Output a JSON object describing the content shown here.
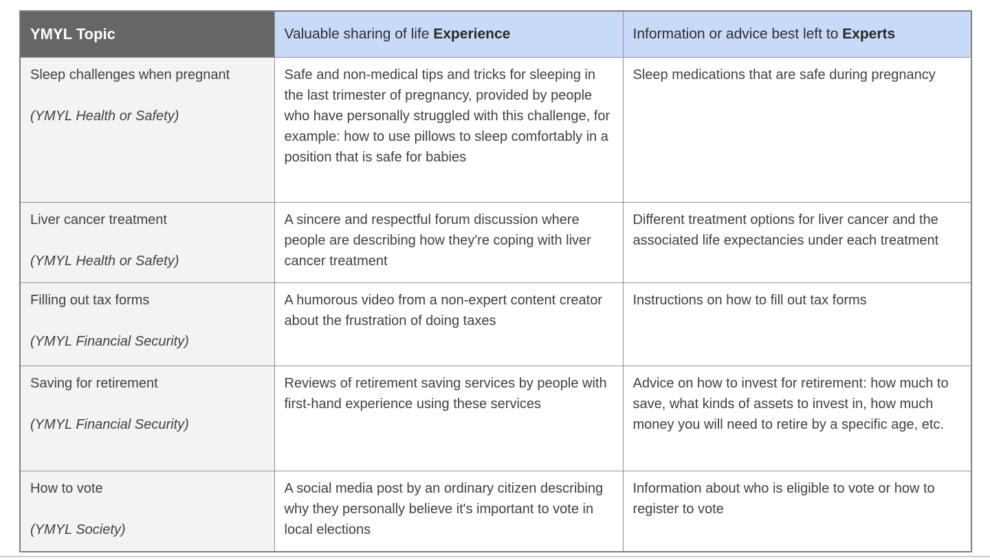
{
  "table": {
    "header": {
      "topic": "YMYL Topic",
      "experience_prefix": "Valuable sharing of life ",
      "experience_bold": "Experience",
      "experts_prefix": "Information or advice best left to ",
      "experts_bold": "Experts"
    },
    "rows": [
      {
        "topic": "Sleep challenges when pregnant",
        "category": "(YMYL Health or Safety)",
        "experience": "Safe and non-medical tips and tricks for sleeping in the last trimester of pregnancy, provided by people who have personally struggled with this challenge, for example: how to use pillows to sleep comfortably in a position that is safe for babies",
        "experts": "Sleep medications that are safe during pregnancy"
      },
      {
        "topic": "Liver cancer treatment",
        "category": "(YMYL Health or Safety)",
        "experience": "A sincere and respectful forum discussion where people are describing how they're coping with liver cancer treatment",
        "experts": "Different treatment options for liver cancer and the associated life expectancies under each treatment"
      },
      {
        "topic": "Filling out tax forms",
        "category": "(YMYL Financial Security)",
        "experience": "A humorous video from a non-expert content creator about the frustration of doing taxes",
        "experts": "Instructions on how to fill out tax forms"
      },
      {
        "topic": "Saving for retirement",
        "category": "(YMYL Financial Security)",
        "experience": "Reviews of retirement saving services by people with first-hand experience using these services",
        "experts": "Advice on how to invest for retirement: how much to save, what kinds of assets to invest in, how much money you will need to retire by a specific age, etc."
      },
      {
        "topic": "How to vote",
        "category": "(YMYL Society)",
        "experience": "A social media post by an ordinary citizen describing why they personally believe it's important to vote in local elections",
        "experts": "Information about who is eligible to vote or how to register to vote"
      }
    ]
  },
  "colors": {
    "header_dark_bg": "#666666",
    "header_blue_bg": "#c9daf8",
    "topic_column_bg": "#f3f3f3",
    "cell_bg": "#ffffff",
    "border": "#8f8f8f",
    "text": "#404040"
  }
}
